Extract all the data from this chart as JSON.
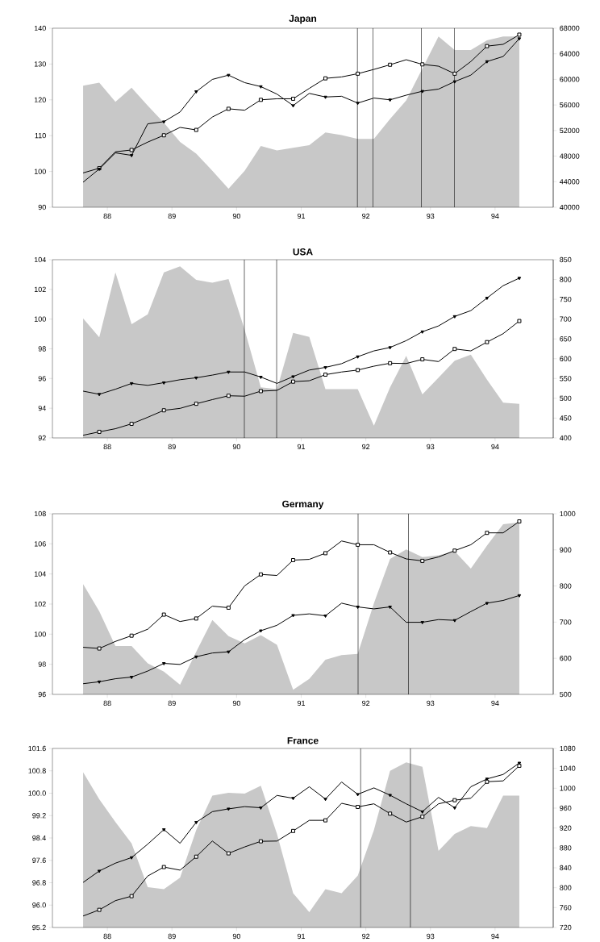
{
  "chart_data": [
    {
      "type": "line",
      "title": "Japan",
      "x": [
        87.625,
        87.875,
        88.125,
        88.375,
        88.625,
        88.875,
        89.125,
        89.375,
        89.625,
        89.875,
        90.125,
        90.375,
        90.625,
        90.875,
        91.125,
        91.375,
        91.625,
        91.875,
        92.125,
        92.375,
        92.625,
        92.875,
        93.125,
        93.375,
        93.625,
        93.875,
        94.125,
        94.375
      ],
      "xlim": [
        87.15,
        94.9
      ],
      "xticks": [
        88,
        89,
        90,
        91,
        92,
        93,
        94
      ],
      "ylim": [
        90,
        140
      ],
      "yticks": [
        90,
        100,
        110,
        120,
        130,
        140
      ],
      "y2lim": [
        40000,
        68000
      ],
      "y2ticks": [
        40000,
        44000,
        48000,
        52000,
        56000,
        60000,
        64000,
        68000
      ],
      "series": [
        {
          "type": "area",
          "axis": "y2",
          "color": "#c8c8c8",
          "values": [
            59000,
            59500,
            56500,
            58700,
            55900,
            53200,
            50200,
            48400,
            45700,
            42900,
            45700,
            49600,
            48900,
            49300,
            49700,
            51700,
            51300,
            50700,
            50700,
            53800,
            56700,
            61700,
            66700,
            64600,
            64600,
            66100,
            66700,
            66700
          ]
        },
        {
          "type": "line",
          "marker": "square",
          "color": "#000000",
          "values": [
            99.6,
            100.9,
            105.5,
            106,
            108.2,
            110.1,
            112.3,
            111.6,
            115.2,
            117.5,
            117.1,
            120,
            120.3,
            120.3,
            123.2,
            126,
            126.4,
            127.3,
            128.5,
            129.8,
            131.2,
            129.9,
            129.4,
            127.3,
            130.7,
            135,
            135.5,
            138.2
          ]
        },
        {
          "type": "line",
          "marker": "triangle",
          "color": "#000000",
          "values": [
            97,
            100.7,
            105.2,
            104.5,
            113.3,
            113.9,
            116.6,
            122.3,
            125.7,
            126.9,
            124.8,
            123.7,
            121.6,
            118.4,
            121.8,
            120.8,
            121,
            119.1,
            120.5,
            120,
            121.3,
            122.4,
            123,
            125.1,
            126.9,
            130.7,
            132.1,
            137.1
          ]
        }
      ],
      "ref_lines": [
        {
          "axis": "x",
          "value": 91.87,
          "color": "#000000"
        },
        {
          "axis": "x",
          "value": 92.11,
          "color": "#000000"
        },
        {
          "axis": "x",
          "value": 92.86,
          "color": "#000000"
        },
        {
          "axis": "x",
          "value": 93.37,
          "color": "#000000"
        }
      ]
    },
    {
      "type": "line",
      "title": "USA",
      "x": [
        87.625,
        87.875,
        88.125,
        88.375,
        88.625,
        88.875,
        89.125,
        89.375,
        89.625,
        89.875,
        90.125,
        90.375,
        90.625,
        90.875,
        91.125,
        91.375,
        91.625,
        91.875,
        92.125,
        92.375,
        92.625,
        92.875,
        93.125,
        93.375,
        93.625,
        93.875,
        94.125,
        94.375
      ],
      "xlim": [
        87.15,
        94.9
      ],
      "xticks": [
        88,
        89,
        90,
        91,
        92,
        93,
        94
      ],
      "ylim": [
        92,
        104
      ],
      "yticks": [
        92,
        94,
        96,
        98,
        100,
        102,
        104
      ],
      "y2lim": [
        400,
        850
      ],
      "y2ticks": [
        400,
        450,
        500,
        550,
        600,
        650,
        700,
        750,
        800,
        850
      ],
      "series": [
        {
          "type": "area",
          "axis": "y2",
          "color": "#c8c8c8",
          "values": [
            702,
            654,
            818,
            687,
            712,
            818,
            833,
            799,
            792,
            801,
            673,
            528,
            523,
            665,
            655,
            523,
            523,
            523,
            431,
            528,
            607,
            510,
            552,
            595,
            610,
            547,
            489,
            486
          ]
        },
        {
          "type": "line",
          "marker": "triangle",
          "color": "#000000",
          "values": [
            95.15,
            94.94,
            95.28,
            95.67,
            95.54,
            95.72,
            95.92,
            96.05,
            96.23,
            96.44,
            96.44,
            96.1,
            95.67,
            96.13,
            96.57,
            96.75,
            97,
            97.47,
            97.86,
            98.09,
            98.55,
            99.15,
            99.54,
            100.18,
            100.57,
            101.42,
            102.25,
            102.76
          ]
        },
        {
          "type": "line",
          "marker": "square",
          "color": "#000000",
          "values": [
            92.18,
            92.41,
            92.62,
            92.95,
            93.39,
            93.86,
            93.99,
            94.3,
            94.58,
            94.84,
            94.81,
            95.15,
            95.2,
            95.79,
            95.85,
            96.26,
            96.44,
            96.57,
            96.83,
            97.03,
            97.01,
            97.29,
            97.14,
            97.99,
            97.86,
            98.45,
            99.02,
            99.87
          ]
        }
      ],
      "ref_lines": [
        {
          "axis": "x",
          "value": 90.12,
          "color": "#000000"
        },
        {
          "axis": "x",
          "value": 90.62,
          "color": "#000000"
        }
      ]
    },
    {
      "type": "line",
      "title": "Germany",
      "x": [
        87.625,
        87.875,
        88.125,
        88.375,
        88.625,
        88.875,
        89.125,
        89.375,
        89.625,
        89.875,
        90.125,
        90.375,
        90.625,
        90.875,
        91.125,
        91.375,
        91.625,
        91.875,
        92.125,
        92.375,
        92.625,
        92.875,
        93.125,
        93.375,
        93.625,
        93.875,
        94.125,
        94.375
      ],
      "xlim": [
        87.15,
        94.9
      ],
      "xticks": [
        88,
        89,
        90,
        91,
        92,
        93,
        94
      ],
      "ylim": [
        96,
        108
      ],
      "yticks": [
        96,
        98,
        100,
        102,
        104,
        106,
        108
      ],
      "y2lim": [
        500,
        1000
      ],
      "y2ticks": [
        500,
        600,
        700,
        800,
        900,
        1000
      ],
      "series": [
        {
          "type": "area",
          "axis": "y2",
          "color": "#c8c8c8",
          "values": [
            805,
            730,
            634,
            634,
            586,
            563,
            527,
            618,
            706,
            661,
            641,
            664,
            637,
            513,
            543,
            596,
            609,
            612,
            752,
            875,
            901,
            880,
            885,
            896,
            848,
            912,
            971,
            976
          ]
        },
        {
          "type": "line",
          "marker": "square",
          "color": "#000000",
          "values": [
            99.13,
            99.05,
            99.52,
            99.9,
            100.33,
            101.3,
            100.84,
            101.04,
            101.86,
            101.76,
            103.21,
            103.97,
            103.9,
            104.92,
            104.97,
            105.38,
            106.19,
            105.94,
            105.94,
            105.43,
            105,
            104.87,
            105.13,
            105.55,
            105.94,
            106.73,
            106.73,
            107.49
          ]
        },
        {
          "type": "line",
          "marker": "triangle",
          "color": "#000000",
          "values": [
            96.71,
            96.84,
            97.04,
            97.15,
            97.55,
            98.06,
            97.99,
            98.5,
            98.75,
            98.83,
            99.64,
            100.23,
            100.59,
            101.25,
            101.35,
            101.22,
            102.06,
            101.81,
            101.68,
            101.81,
            100.79,
            100.79,
            100.97,
            100.92,
            101.5,
            102.06,
            102.24,
            102.57
          ]
        }
      ],
      "ref_lines": [
        {
          "axis": "x",
          "value": 91.88,
          "color": "#000000"
        },
        {
          "axis": "x",
          "value": 92.66,
          "color": "#000000"
        }
      ]
    },
    {
      "type": "line",
      "title": "France",
      "x": [
        87.625,
        87.875,
        88.125,
        88.375,
        88.625,
        88.875,
        89.125,
        89.375,
        89.625,
        89.875,
        90.125,
        90.375,
        90.625,
        90.875,
        91.125,
        91.375,
        91.625,
        91.875,
        92.125,
        92.375,
        92.625,
        92.875,
        93.125,
        93.375,
        93.625,
        93.875,
        94.125,
        94.375
      ],
      "xlim": [
        87.15,
        94.9
      ],
      "xticks": [
        88,
        89,
        90,
        91,
        92,
        93,
        94
      ],
      "ylim": [
        95.2,
        101.6
      ],
      "yticks": [
        95.2,
        {
          "value": 96,
          "label": "96.0"
        },
        96.8,
        97.6,
        98.4,
        99.2,
        {
          "value": 100,
          "label": "100.0"
        },
        100.8,
        101.6
      ],
      "y2lim": [
        720,
        1080
      ],
      "y2ticks": [
        720,
        760,
        800,
        840,
        880,
        920,
        960,
        1000,
        1040,
        1080
      ],
      "series": [
        {
          "type": "area",
          "axis": "y2",
          "color": "#c8c8c8",
          "values": [
            1032,
            978,
            932,
            889,
            801,
            797,
            820,
            916,
            985,
            991,
            989,
            1005,
            908,
            789,
            751,
            797,
            789,
            824,
            916,
            1035,
            1052,
            1043,
            874,
            908,
            924,
            920,
            985,
            985
          ]
        },
        {
          "type": "line",
          "marker": "triangle",
          "color": "#000000",
          "values": [
            96.81,
            97.22,
            97.5,
            97.7,
            98.18,
            98.7,
            98.21,
            98.96,
            99.34,
            99.44,
            99.52,
            99.48,
            99.92,
            99.82,
            100.23,
            99.79,
            100.4,
            99.96,
            100.19,
            99.93,
            99.62,
            99.34,
            99.85,
            99.48,
            100.23,
            100.51,
            100.67,
            101.08
          ]
        },
        {
          "type": "line",
          "marker": "square",
          "color": "#000000",
          "values": [
            95.61,
            95.83,
            96.16,
            96.32,
            97.04,
            97.36,
            97.25,
            97.73,
            98.29,
            97.85,
            98.08,
            98.28,
            98.29,
            98.65,
            99.03,
            99.03,
            99.64,
            99.51,
            99.62,
            99.27,
            98.97,
            99.16,
            99.62,
            99.75,
            99.82,
            100.41,
            100.44,
            100.98
          ]
        }
      ],
      "ref_lines": [
        {
          "axis": "x",
          "value": 91.92,
          "color": "#000000"
        },
        {
          "axis": "x",
          "value": 92.69,
          "color": "#000000"
        }
      ]
    }
  ]
}
